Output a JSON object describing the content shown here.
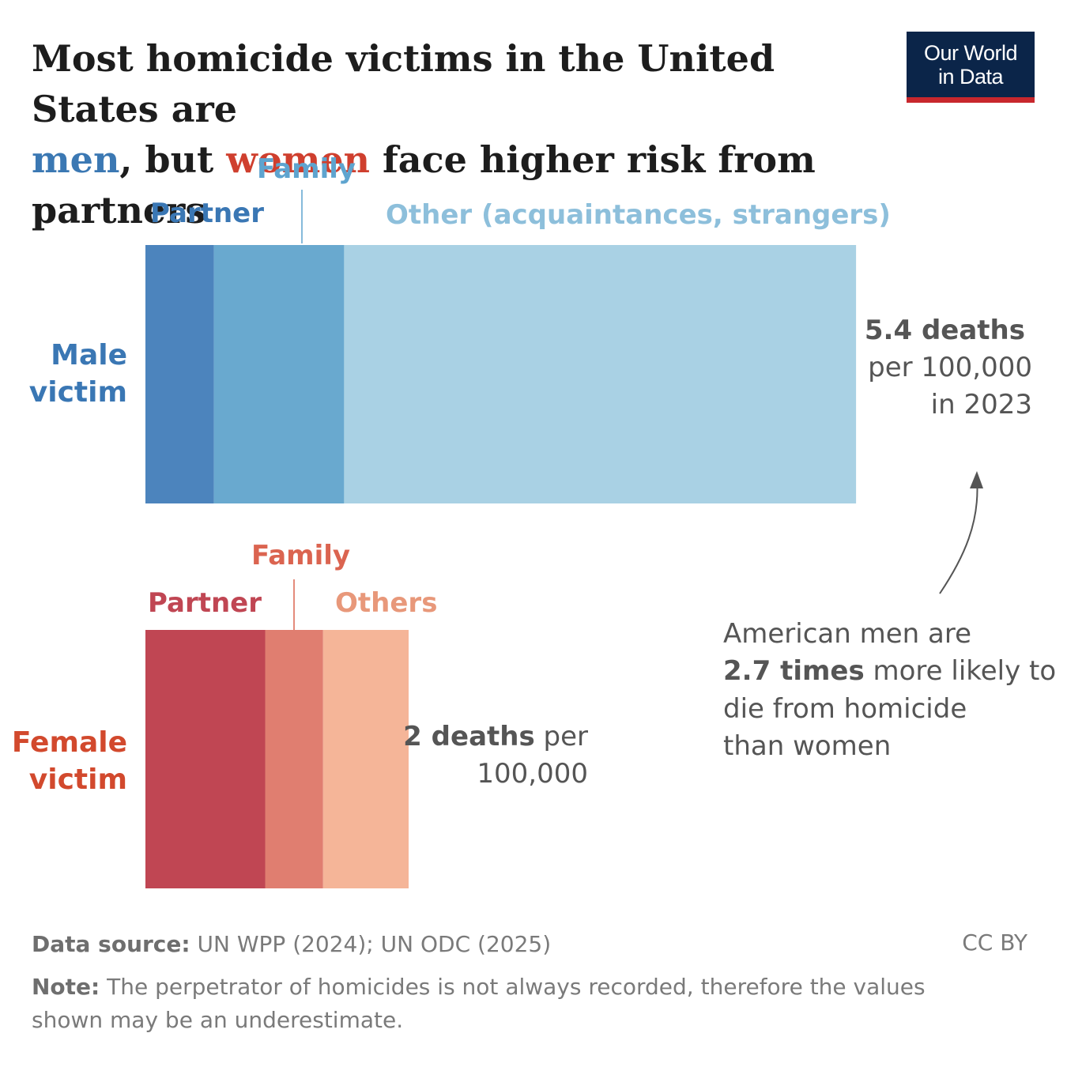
{
  "title": {
    "line1": "Most homicide victims in the United States are",
    "men": "men",
    "mid": ", but ",
    "women": "women",
    "end": " face higher risk from partners"
  },
  "logo": {
    "line1": "Our World",
    "line2": "in Data"
  },
  "colors": {
    "men_title": "#3b78b3",
    "women_title": "#cf3f2e",
    "male_partner": "#4c84bd",
    "male_family": "#69a9cf",
    "male_other": "#a9d1e4",
    "female_partner": "#c04653",
    "female_family": "#e07e70",
    "female_other": "#f5b598",
    "male_label": "#3a77b4",
    "female_label": "#d2492d"
  },
  "chart_data": {
    "type": "bar",
    "stacked": true,
    "orientation": "horizontal",
    "categories": [
      "Male victim",
      "Female victim"
    ],
    "series": [
      {
        "name": "Partner",
        "values": [
          0.52,
          0.91
        ]
      },
      {
        "name": "Family",
        "values": [
          0.99,
          0.44
        ]
      },
      {
        "name": "Other (acquaintances, strangers)",
        "values": [
          3.89,
          0.65
        ]
      }
    ],
    "totals": [
      5.4,
      2
    ],
    "male": {
      "label_line1": "Male",
      "label_line2": "victim",
      "segment_labels": [
        "Partner",
        "Family",
        "Other (acquaintances, strangers)"
      ],
      "total_bold": "5.4 deaths",
      "total_line2": "per 100,000",
      "total_line3": "in 2023"
    },
    "female": {
      "label_line1": "Female",
      "label_line2": "victim",
      "segment_labels": [
        "Partner",
        "Family",
        "Others"
      ],
      "total_bold": "2 deaths",
      "total_rest": " per",
      "total_line2": "100,000"
    },
    "annotation": {
      "line1": "American men are",
      "bold": "2.7 times",
      "line2_rest": " more likely to",
      "line3": "die from homicide",
      "line4": "than women"
    }
  },
  "footer": {
    "source_label": "Data source:",
    "source_text": " UN WPP (2024); UN ODC (2025)",
    "note_label": "Note:",
    "note_text": " The perpetrator of homicides is not always recorded, therefore the values",
    "note_text2": "shown may be an underestimate.",
    "license": "CC BY"
  }
}
